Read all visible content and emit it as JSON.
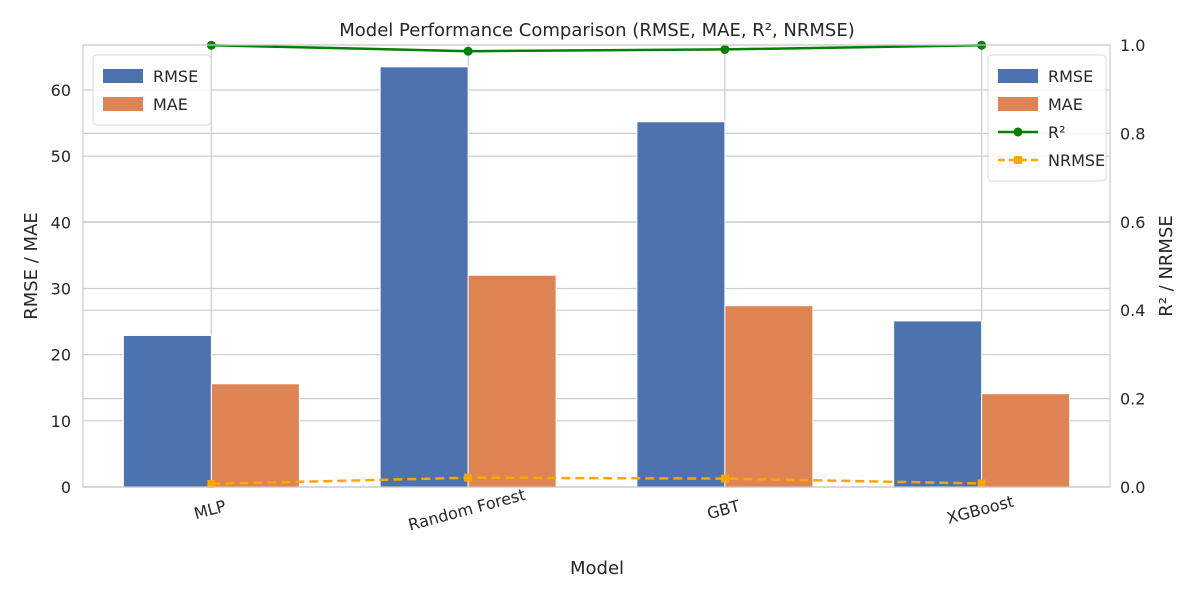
{
  "chart_data": {
    "type": "bar",
    "title": "Model Performance Comparison (RMSE, MAE, R², NRMSE)",
    "xlabel": "Model",
    "ylabel": "RMSE / MAE",
    "y2label": "R² / NRMSE",
    "categories": [
      "MLP",
      "Random Forest",
      "GBT",
      "XGBoost"
    ],
    "ylim": [
      0,
      66.8
    ],
    "y2lim": [
      0,
      1.0
    ],
    "yticks": [
      0,
      10,
      20,
      30,
      40,
      50,
      60
    ],
    "y2ticks": [
      0.0,
      0.2,
      0.4,
      0.6,
      0.8,
      1.0
    ],
    "grid": true,
    "bar_series": [
      {
        "name": "RMSE",
        "values": [
          22.9,
          63.5,
          55.2,
          25.1
        ],
        "color": "#4c72b0"
      },
      {
        "name": "MAE",
        "values": [
          15.6,
          32.0,
          27.4,
          14.1
        ],
        "color": "#dd8452"
      }
    ],
    "line_series": [
      {
        "name": "R²",
        "values": [
          0.9995,
          0.986,
          0.99,
          0.9995
        ],
        "color": "#008000",
        "style": "solid",
        "marker": "circle"
      },
      {
        "name": "NRMSE",
        "values": [
          0.007,
          0.021,
          0.019,
          0.008
        ],
        "color": "#ffa500",
        "style": "dashed",
        "marker": "square"
      }
    ],
    "legends": [
      {
        "placement": "top-left",
        "entries": [
          "RMSE",
          "MAE"
        ]
      },
      {
        "placement": "top-right",
        "entries": [
          "RMSE",
          "MAE",
          "R²",
          "NRMSE"
        ]
      }
    ]
  }
}
